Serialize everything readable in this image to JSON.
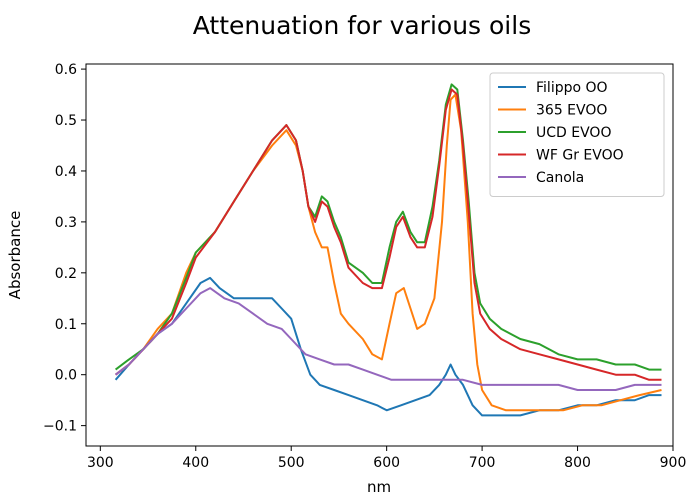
{
  "chart_data": {
    "type": "line",
    "title": "Attenuation for various oils",
    "xlabel": "nm",
    "ylabel": "Absorbance",
    "xlim": [
      285,
      900
    ],
    "ylim": [
      -0.14,
      0.61
    ],
    "xticks": [
      300,
      400,
      500,
      600,
      700,
      800,
      900
    ],
    "xtick_labels": [
      "300",
      "400",
      "500",
      "600",
      "700",
      "800",
      "900"
    ],
    "yticks": [
      -0.1,
      0.0,
      0.1,
      0.2,
      0.3,
      0.4,
      0.5,
      0.6
    ],
    "ytick_labels": [
      "−0.1",
      "0.0",
      "0.1",
      "0.2",
      "0.3",
      "0.4",
      "0.5",
      "0.6"
    ],
    "grid": false,
    "legend_position": "top-right",
    "series": [
      {
        "name": "Filippo OO",
        "color": "#1f77b4",
        "points": [
          [
            316,
            -0.01
          ],
          [
            330,
            0.02
          ],
          [
            345,
            0.05
          ],
          [
            360,
            0.08
          ],
          [
            375,
            0.1
          ],
          [
            390,
            0.14
          ],
          [
            405,
            0.18
          ],
          [
            415,
            0.19
          ],
          [
            425,
            0.17
          ],
          [
            440,
            0.15
          ],
          [
            455,
            0.15
          ],
          [
            470,
            0.15
          ],
          [
            480,
            0.15
          ],
          [
            490,
            0.13
          ],
          [
            500,
            0.11
          ],
          [
            510,
            0.05
          ],
          [
            520,
            0.0
          ],
          [
            530,
            -0.02
          ],
          [
            545,
            -0.03
          ],
          [
            560,
            -0.04
          ],
          [
            575,
            -0.05
          ],
          [
            590,
            -0.06
          ],
          [
            600,
            -0.07
          ],
          [
            615,
            -0.06
          ],
          [
            630,
            -0.05
          ],
          [
            645,
            -0.04
          ],
          [
            655,
            -0.02
          ],
          [
            662,
            0.0
          ],
          [
            667,
            0.02
          ],
          [
            672,
            0.0
          ],
          [
            680,
            -0.02
          ],
          [
            690,
            -0.06
          ],
          [
            700,
            -0.08
          ],
          [
            720,
            -0.08
          ],
          [
            740,
            -0.08
          ],
          [
            760,
            -0.07
          ],
          [
            780,
            -0.07
          ],
          [
            800,
            -0.06
          ],
          [
            820,
            -0.06
          ],
          [
            840,
            -0.05
          ],
          [
            860,
            -0.05
          ],
          [
            875,
            -0.04
          ],
          [
            888,
            -0.04
          ]
        ]
      },
      {
        "name": "365 EVOO",
        "color": "#ff7f0e",
        "points": [
          [
            316,
            0.0
          ],
          [
            330,
            0.02
          ],
          [
            345,
            0.05
          ],
          [
            360,
            0.09
          ],
          [
            375,
            0.12
          ],
          [
            390,
            0.2
          ],
          [
            400,
            0.24
          ],
          [
            420,
            0.28
          ],
          [
            440,
            0.34
          ],
          [
            460,
            0.4
          ],
          [
            480,
            0.45
          ],
          [
            495,
            0.48
          ],
          [
            505,
            0.45
          ],
          [
            512,
            0.4
          ],
          [
            518,
            0.33
          ],
          [
            525,
            0.28
          ],
          [
            532,
            0.25
          ],
          [
            538,
            0.25
          ],
          [
            545,
            0.18
          ],
          [
            552,
            0.12
          ],
          [
            560,
            0.1
          ],
          [
            575,
            0.07
          ],
          [
            585,
            0.04
          ],
          [
            595,
            0.03
          ],
          [
            603,
            0.1
          ],
          [
            610,
            0.16
          ],
          [
            618,
            0.17
          ],
          [
            625,
            0.13
          ],
          [
            632,
            0.09
          ],
          [
            640,
            0.1
          ],
          [
            650,
            0.15
          ],
          [
            658,
            0.3
          ],
          [
            663,
            0.45
          ],
          [
            667,
            0.54
          ],
          [
            672,
            0.55
          ],
          [
            678,
            0.48
          ],
          [
            685,
            0.3
          ],
          [
            690,
            0.12
          ],
          [
            695,
            0.02
          ],
          [
            700,
            -0.03
          ],
          [
            710,
            -0.06
          ],
          [
            725,
            -0.07
          ],
          [
            745,
            -0.07
          ],
          [
            765,
            -0.07
          ],
          [
            785,
            -0.07
          ],
          [
            805,
            -0.06
          ],
          [
            825,
            -0.06
          ],
          [
            845,
            -0.05
          ],
          [
            865,
            -0.04
          ],
          [
            888,
            -0.03
          ]
        ]
      },
      {
        "name": "UCD EVOO",
        "color": "#2ca02c",
        "points": [
          [
            316,
            0.01
          ],
          [
            330,
            0.03
          ],
          [
            345,
            0.05
          ],
          [
            360,
            0.08
          ],
          [
            375,
            0.12
          ],
          [
            390,
            0.19
          ],
          [
            400,
            0.24
          ],
          [
            420,
            0.28
          ],
          [
            440,
            0.34
          ],
          [
            460,
            0.4
          ],
          [
            480,
            0.46
          ],
          [
            495,
            0.49
          ],
          [
            505,
            0.46
          ],
          [
            512,
            0.4
          ],
          [
            518,
            0.33
          ],
          [
            525,
            0.31
          ],
          [
            532,
            0.35
          ],
          [
            538,
            0.34
          ],
          [
            545,
            0.3
          ],
          [
            552,
            0.27
          ],
          [
            560,
            0.22
          ],
          [
            575,
            0.2
          ],
          [
            585,
            0.18
          ],
          [
            595,
            0.18
          ],
          [
            603,
            0.25
          ],
          [
            610,
            0.3
          ],
          [
            617,
            0.32
          ],
          [
            625,
            0.28
          ],
          [
            632,
            0.26
          ],
          [
            640,
            0.26
          ],
          [
            648,
            0.33
          ],
          [
            655,
            0.42
          ],
          [
            662,
            0.53
          ],
          [
            668,
            0.57
          ],
          [
            674,
            0.56
          ],
          [
            680,
            0.46
          ],
          [
            686,
            0.34
          ],
          [
            692,
            0.2
          ],
          [
            698,
            0.14
          ],
          [
            708,
            0.11
          ],
          [
            720,
            0.09
          ],
          [
            740,
            0.07
          ],
          [
            760,
            0.06
          ],
          [
            780,
            0.04
          ],
          [
            800,
            0.03
          ],
          [
            820,
            0.03
          ],
          [
            840,
            0.02
          ],
          [
            860,
            0.02
          ],
          [
            875,
            0.01
          ],
          [
            888,
            0.01
          ]
        ]
      },
      {
        "name": "WF Gr EVOO",
        "color": "#d62728",
        "points": [
          [
            316,
            0.0
          ],
          [
            330,
            0.02
          ],
          [
            345,
            0.05
          ],
          [
            360,
            0.08
          ],
          [
            375,
            0.11
          ],
          [
            390,
            0.18
          ],
          [
            400,
            0.23
          ],
          [
            420,
            0.28
          ],
          [
            440,
            0.34
          ],
          [
            460,
            0.4
          ],
          [
            480,
            0.46
          ],
          [
            495,
            0.49
          ],
          [
            505,
            0.46
          ],
          [
            512,
            0.4
          ],
          [
            518,
            0.33
          ],
          [
            525,
            0.3
          ],
          [
            532,
            0.34
          ],
          [
            538,
            0.33
          ],
          [
            545,
            0.29
          ],
          [
            552,
            0.26
          ],
          [
            560,
            0.21
          ],
          [
            575,
            0.18
          ],
          [
            585,
            0.17
          ],
          [
            595,
            0.17
          ],
          [
            603,
            0.23
          ],
          [
            610,
            0.29
          ],
          [
            617,
            0.31
          ],
          [
            625,
            0.27
          ],
          [
            632,
            0.25
          ],
          [
            640,
            0.25
          ],
          [
            648,
            0.31
          ],
          [
            655,
            0.41
          ],
          [
            662,
            0.52
          ],
          [
            668,
            0.56
          ],
          [
            674,
            0.55
          ],
          [
            680,
            0.45
          ],
          [
            686,
            0.32
          ],
          [
            692,
            0.18
          ],
          [
            698,
            0.12
          ],
          [
            708,
            0.09
          ],
          [
            720,
            0.07
          ],
          [
            740,
            0.05
          ],
          [
            760,
            0.04
          ],
          [
            780,
            0.03
          ],
          [
            800,
            0.02
          ],
          [
            820,
            0.01
          ],
          [
            840,
            0.0
          ],
          [
            860,
            0.0
          ],
          [
            875,
            -0.01
          ],
          [
            888,
            -0.01
          ]
        ]
      },
      {
        "name": "Canola",
        "color": "#9467bd",
        "points": [
          [
            316,
            0.0
          ],
          [
            330,
            0.02
          ],
          [
            345,
            0.05
          ],
          [
            360,
            0.08
          ],
          [
            375,
            0.1
          ],
          [
            390,
            0.13
          ],
          [
            405,
            0.16
          ],
          [
            415,
            0.17
          ],
          [
            430,
            0.15
          ],
          [
            445,
            0.14
          ],
          [
            460,
            0.12
          ],
          [
            475,
            0.1
          ],
          [
            490,
            0.09
          ],
          [
            500,
            0.07
          ],
          [
            515,
            0.04
          ],
          [
            530,
            0.03
          ],
          [
            545,
            0.02
          ],
          [
            560,
            0.02
          ],
          [
            575,
            0.01
          ],
          [
            590,
            0.0
          ],
          [
            605,
            -0.01
          ],
          [
            620,
            -0.01
          ],
          [
            640,
            -0.01
          ],
          [
            660,
            -0.01
          ],
          [
            680,
            -0.01
          ],
          [
            700,
            -0.02
          ],
          [
            720,
            -0.02
          ],
          [
            740,
            -0.02
          ],
          [
            760,
            -0.02
          ],
          [
            780,
            -0.02
          ],
          [
            800,
            -0.03
          ],
          [
            820,
            -0.03
          ],
          [
            840,
            -0.03
          ],
          [
            860,
            -0.02
          ],
          [
            875,
            -0.02
          ],
          [
            888,
            -0.02
          ]
        ]
      }
    ]
  }
}
